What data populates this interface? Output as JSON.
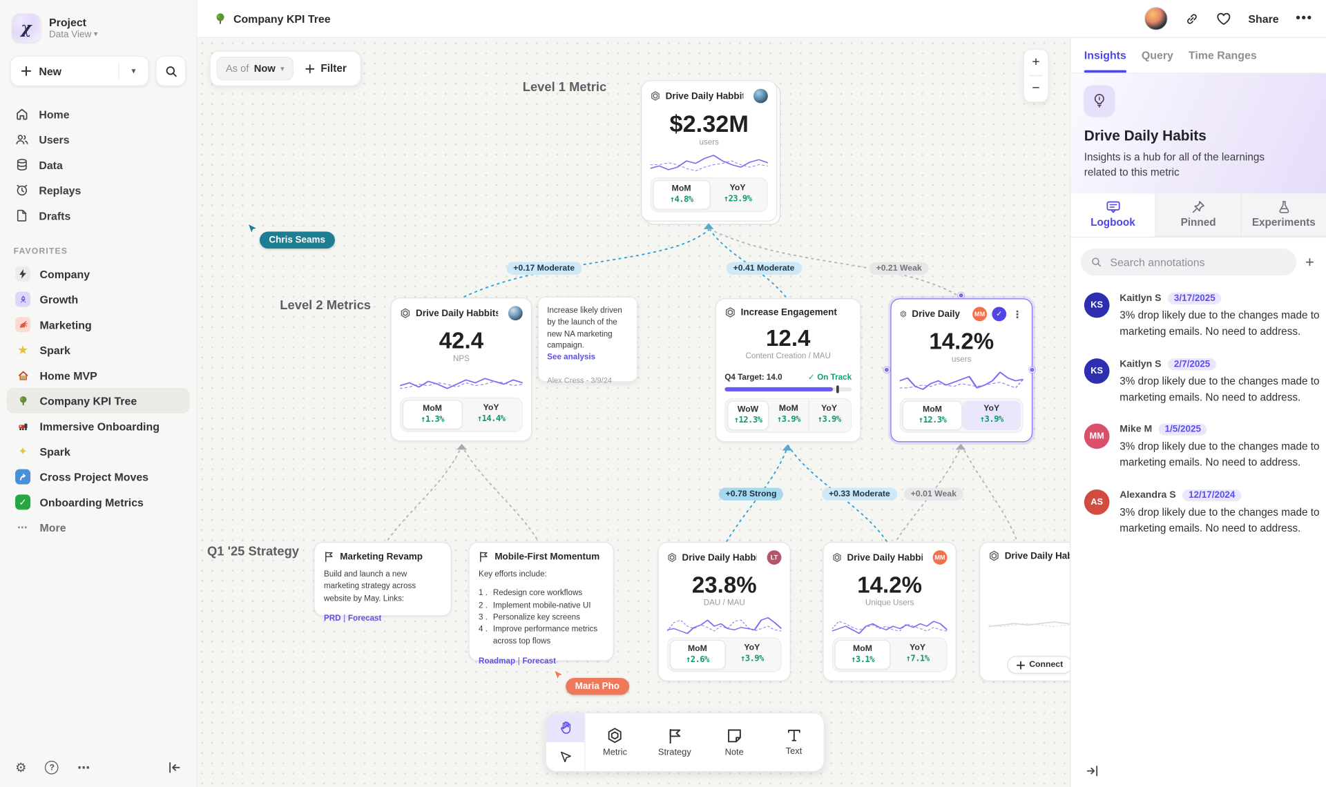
{
  "header": {
    "title": "Company KPI Tree",
    "share_label": "Share"
  },
  "panel_tabs": {
    "insights": "Insights",
    "query": "Query",
    "time_ranges": "Time Ranges"
  },
  "sidebar": {
    "project": "Project",
    "workspace": "Data View",
    "new_label": "New",
    "nav": [
      {
        "label": "Home",
        "icon": "home"
      },
      {
        "label": "Users",
        "icon": "users"
      },
      {
        "label": "Data",
        "icon": "database"
      },
      {
        "label": "Replays",
        "icon": "replay-clock"
      },
      {
        "label": "Drafts",
        "icon": "draft-file"
      }
    ],
    "favorites_label": "FAVORITES",
    "favorites": [
      {
        "label": "Company",
        "icon": "bolt"
      },
      {
        "label": "Growth",
        "icon": "rocket"
      },
      {
        "label": "Marketing",
        "icon": "megaphone"
      },
      {
        "label": "Spark",
        "icon": "star"
      },
      {
        "label": "Home MVP",
        "icon": "house"
      },
      {
        "label": "Company KPI Tree",
        "icon": "tree"
      },
      {
        "label": "Immersive Onboarding",
        "icon": "train"
      },
      {
        "label": "Spark",
        "icon": "sparkles"
      },
      {
        "label": "Cross Project Moves",
        "icon": "arrow-up-right"
      },
      {
        "label": "Onboarding Metrics",
        "icon": "check"
      }
    ],
    "more_label": "More"
  },
  "canvas": {
    "asof_label": "As of",
    "asof_value": "Now",
    "filter_label": "Filter",
    "levels": [
      "Level 1 Metric",
      "Level 2 Metrics",
      "Q1 '25 Strategy"
    ],
    "cursors": [
      {
        "name": "Chris Seams",
        "color": "#1d7d92"
      },
      {
        "name": "Maria Pho",
        "color": "#f0785a"
      }
    ],
    "edges": [
      {
        "label": "+0.17 Moderate"
      },
      {
        "label": "+0.41 Moderate"
      },
      {
        "label": "+0.21 Weak"
      },
      {
        "label": "+0.78 Strong"
      },
      {
        "label": "+0.33 Moderate"
      },
      {
        "label": "+0.01 Weak"
      }
    ],
    "link_sep": "|",
    "cards": {
      "root": {
        "title": "Drive Daily Habbits",
        "value": "$2.32M",
        "unit": "users",
        "stats": [
          {
            "label": "MoM",
            "value": "↑4.8%"
          },
          {
            "label": "YoY",
            "value": "↑23.9%"
          }
        ],
        "spark": {
          "solid": [
            12,
            16,
            10,
            14,
            24,
            20,
            28,
            33,
            24,
            18,
            14,
            22,
            26,
            21
          ],
          "dash": [
            18,
            18,
            21,
            18,
            12,
            8,
            14,
            18,
            20,
            24,
            18,
            14,
            18,
            16
          ]
        }
      },
      "nps": {
        "title": "Drive Daily Habbits",
        "value": "42.4",
        "unit": "NPS",
        "stats": [
          {
            "label": "MoM",
            "value": "↑1.3%"
          },
          {
            "label": "YoY",
            "value": "↑14.4%"
          }
        ],
        "spark": {
          "solid": [
            14,
            18,
            12,
            20,
            16,
            10,
            16,
            22,
            18,
            24,
            20,
            16,
            22,
            18
          ],
          "dash": [
            10,
            12,
            16,
            14,
            18,
            16,
            12,
            18,
            14,
            16,
            20,
            18,
            14,
            16
          ]
        }
      },
      "engagement": {
        "title": "Increase Engagement",
        "value": "12.4",
        "unit": "Content Creation / MAU",
        "target": "Q4 Target: 14.0",
        "status": "On Track",
        "progress_pct": 85,
        "stats": [
          {
            "label": "WoW",
            "value": "↑12.3%"
          },
          {
            "label": "MoM",
            "value": "↑3.9%"
          },
          {
            "label": "YoY",
            "value": "↑3.9%"
          }
        ]
      },
      "selected": {
        "title": "Drive Daily Habb..",
        "badge": "MM",
        "value": "14.2%",
        "unit": "users",
        "stats": [
          {
            "label": "MoM",
            "value": "↑12.3%"
          },
          {
            "label": "YoY",
            "value": "↑3.9%"
          }
        ],
        "spark": {
          "solid": [
            22,
            26,
            14,
            10,
            18,
            22,
            16,
            20,
            24,
            28,
            12,
            16,
            22,
            34,
            26,
            22,
            24
          ],
          "dash": [
            12,
            12,
            14,
            16,
            14,
            18,
            16,
            14,
            18,
            16,
            14,
            16,
            18,
            20,
            16,
            12,
            24
          ]
        }
      },
      "dau": {
        "title": "Drive Daily Habbits",
        "badge": "LT",
        "value": "23.8%",
        "unit": "DAU / MAU",
        "stats": [
          {
            "label": "MoM",
            "value": "↑2.6%"
          },
          {
            "label": "YoY",
            "value": "↑3.9%"
          }
        ],
        "spark": {
          "solid": [
            10,
            12,
            8,
            4,
            14,
            18,
            26,
            16,
            20,
            12,
            10,
            14,
            12,
            10,
            26,
            30,
            22,
            12
          ],
          "dash": [
            8,
            22,
            26,
            16,
            12,
            18,
            14,
            8,
            16,
            12,
            24,
            26,
            14,
            8,
            12,
            16,
            10,
            8
          ]
        }
      },
      "unique": {
        "title": "Drive Daily Habbits",
        "badge": "MM",
        "value": "14.2%",
        "unit": "Unique Users",
        "stats": [
          {
            "label": "MoM",
            "value": "↑3.1%"
          },
          {
            "label": "YoY",
            "value": "↑7.1%"
          }
        ],
        "spark": {
          "solid": [
            8,
            12,
            16,
            10,
            4,
            16,
            20,
            14,
            10,
            16,
            12,
            18,
            14,
            20,
            16,
            24,
            20,
            10
          ],
          "dash": [
            12,
            24,
            20,
            14,
            10,
            14,
            18,
            12,
            16,
            10,
            8,
            20,
            16,
            12,
            8,
            14,
            10,
            8
          ]
        }
      },
      "partial": {
        "title": "Drive Daily Hab",
        "connect_label": "Connect",
        "spark": {
          "solid": [
            10,
            12,
            14,
            12,
            14,
            16,
            14,
            12
          ],
          "dash": [
            12,
            10,
            12,
            14,
            12,
            10,
            12,
            14
          ]
        }
      }
    },
    "note": {
      "body": "Increase likely driven by the launch of the new NA marketing campaign.",
      "link": "See analysis",
      "author": "Alex Cress - 3/9/24"
    },
    "strategies": {
      "marketing": {
        "title": "Marketing Revamp",
        "body": "Build and launch a new marketing strategy across website by May. Links:",
        "links": [
          "PRD",
          "Forecast"
        ]
      },
      "mobile": {
        "title": "Mobile-First Momentum",
        "intro": "Key efforts include:",
        "items": [
          "Redesign core workflows",
          "Implement mobile-native UI",
          "Personalize key screens",
          "Improve performance metrics across top flows"
        ],
        "links": [
          "Roadmap",
          "Forecast"
        ]
      }
    },
    "tools": {
      "metric": "Metric",
      "strategy": "Strategy",
      "note": "Note",
      "text": "Text"
    }
  },
  "insights": {
    "title": "Drive Daily Habits",
    "description": "Insights is a hub for all of the learnings related to this metric",
    "tabs": {
      "logbook": "Logbook",
      "pinned": "Pinned",
      "experiments": "Experiments"
    },
    "search_placeholder": "Search annotations",
    "annotations": [
      {
        "initials": "KS",
        "name": "Kaitlyn S",
        "date": "3/17/2025",
        "body": "3% drop likely due to the changes made to marketing emails. No need to address.",
        "color": "#2d2fb0"
      },
      {
        "initials": "KS",
        "name": "Kaitlyn S",
        "date": "2/7/2025",
        "body": "3% drop likely due to the changes made to marketing emails. No need to address.",
        "color": "#2d2fb0"
      },
      {
        "initials": "MM",
        "name": "Mike M",
        "date": "1/5/2025",
        "body": "3% drop likely due to the changes made to marketing emails. No need to address.",
        "color": "#d8506b"
      },
      {
        "initials": "AS",
        "name": "Alexandra S",
        "date": "12/17/2024",
        "body": "3% drop likely due to the changes made to marketing emails. No need to address.",
        "color": "#d14b41"
      }
    ]
  }
}
